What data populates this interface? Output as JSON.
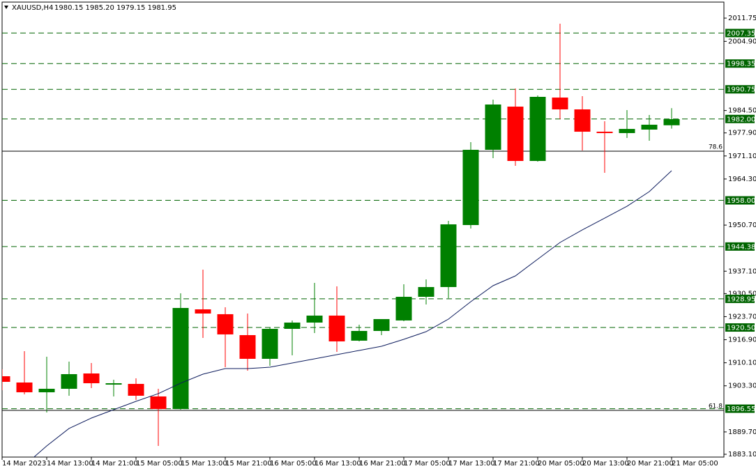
{
  "chart_data": {
    "type": "candlestick",
    "title": "XAUUSD,H4",
    "ohlc": "1980.15 1985.20 1979.15 1981.95",
    "categories": [
      "14 Mar 2023",
      null,
      "14 Mar 13:00",
      null,
      "14 Mar 21:00",
      null,
      "15 Mar 05:00",
      null,
      "15 Mar 13:00",
      null,
      "15 Mar 21:00",
      null,
      "16 Mar 05:00",
      null,
      "16 Mar 13:00",
      null,
      "16 Mar 21:00",
      null,
      "17 Mar 05:00",
      null,
      "17 Mar 13:00",
      null,
      "17 Mar 21:00",
      null,
      "20 Mar 05:00",
      null,
      "20 Mar 13:00",
      null,
      "20 Mar 21:00",
      null,
      "21 Mar 05:00"
    ],
    "open": [
      1906.12,
      1904.27,
      1901.39,
      1902.42,
      1906.94,
      1903.65,
      1903.86,
      1900.16,
      1896.46,
      1925.85,
      1924.42,
      1918.25,
      1911.26,
      1920.1,
      1921.95,
      1924.01,
      1916.61,
      1919.48,
      1922.57,
      1929.55,
      1932.43,
      1950.72,
      1972.91,
      1985.65,
      1969.62,
      1988.32,
      1984.83,
      1978.25,
      1977.84,
      1978.87,
      1980.15
    ],
    "high": [
      1908.17,
      1913.52,
      1911.88,
      1910.44,
      1910.03,
      1905.09,
      1905.5,
      1902.42,
      1930.58,
      1937.56,
      1926.47,
      1924.62,
      1920.51,
      1922.57,
      1933.66,
      1932.63,
      1921.33,
      1922.98,
      1933.25,
      1934.69,
      1951.95,
      1975.17,
      1987.71,
      1990.99,
      1988.94,
      2010.11,
      1988.73,
      1981.33,
      1984.62,
      1983.19,
      1985.2
    ],
    "low": [
      1902.01,
      1900.78,
      1895.44,
      1900.37,
      1902.62,
      1900.16,
      1899.13,
      1885.58,
      1896.26,
      1917.43,
      1908.8,
      1907.76,
      1909.21,
      1912.29,
      1918.87,
      1913.32,
      1916.4,
      1918.25,
      1922.36,
      1927.29,
      1929.14,
      1949.69,
      1970.44,
      1968.18,
      1969.42,
      1981.95,
      1972.7,
      1966.13,
      1976.4,
      1975.58,
      1979.15
    ],
    "close": [
      1904.47,
      1901.39,
      1902.42,
      1906.74,
      1904.06,
      1904.06,
      1900.37,
      1896.46,
      1926.26,
      1924.62,
      1918.46,
      1911.26,
      1920.1,
      1921.95,
      1924.01,
      1916.4,
      1919.48,
      1922.98,
      1929.55,
      1932.43,
      1950.92,
      1972.91,
      1986.27,
      1969.62,
      1988.53,
      1984.83,
      1978.25,
      1977.84,
      1979.07,
      1980.31,
      1981.95
    ],
    "up_color": "#008000",
    "down_color": "#ff0000",
    "moving_average": {
      "color": "#0b1a5c",
      "values": [
        null,
        1879.8,
        1885.57,
        1890.71,
        1893.79,
        1896.26,
        1898.72,
        1900.99,
        1904.07,
        1906.74,
        1908.38,
        1908.38,
        1908.79,
        1910.03,
        1911.26,
        1912.49,
        1913.73,
        1914.96,
        1917.01,
        1919.27,
        1922.97,
        1928.11,
        1932.84,
        1935.71,
        1940.65,
        1945.58,
        1949.28,
        1952.77,
        1956.26,
        1960.58,
        1966.75
      ]
    },
    "levels": [
      2007.35,
      1998.35,
      1990.75,
      {
        "value": 1982,
        "label": "1982.00"
      },
      {
        "value": 1958,
        "label": "1958.00"
      },
      1944.38,
      1928.95,
      {
        "value": 1920.5,
        "label": "1920.50"
      },
      1896.55
    ],
    "level_color": "#006400",
    "fib_lines": [
      {
        "value": 1972.5,
        "label": "78.6"
      },
      {
        "value": 1896.05,
        "label": "61.8"
      }
    ],
    "ylim": [
      1882.28,
      2016.48
    ],
    "yticks": [
      2011.75,
      {
        "value": 2004.9,
        "label": "2004.90"
      },
      {
        "value": 1984.5,
        "label": "1984.50"
      },
      {
        "value": 1977.9,
        "label": "1977.90"
      },
      {
        "value": 1971.1,
        "label": "1971.10"
      },
      {
        "value": 1964.3,
        "label": "1964.30"
      },
      {
        "value": 1950.7,
        "label": "1950.70"
      },
      {
        "value": 1937.1,
        "label": "1937.10"
      },
      {
        "value": 1930.5,
        "label": "1930.50"
      },
      {
        "value": 1923.7,
        "label": "1923.70"
      },
      {
        "value": 1916.9,
        "label": "1916.90"
      },
      {
        "value": 1910.1,
        "label": "1910.10"
      },
      {
        "value": 1903.3,
        "label": "1903.30"
      },
      {
        "value": 1889.7,
        "label": "1889.70"
      },
      {
        "value": 1883.1,
        "label": "1883.10"
      }
    ]
  }
}
